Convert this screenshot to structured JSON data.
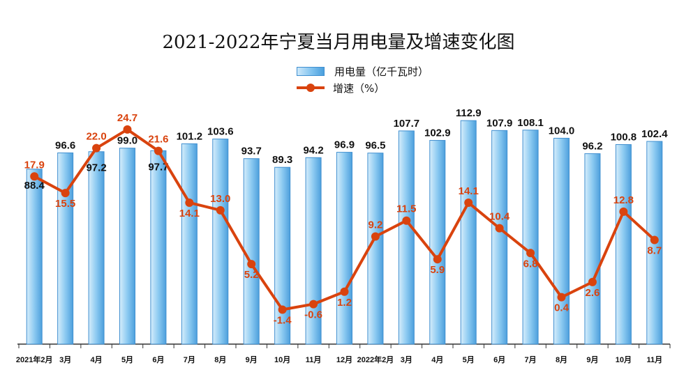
{
  "chart_data": {
    "type": "bar",
    "title": "2021-2022年宁夏当月用电量及增速变化图",
    "categories": [
      "2021年2月",
      "3月",
      "4月",
      "5月",
      "6月",
      "7月",
      "8月",
      "9月",
      "10月",
      "11月",
      "12月",
      "2022年2月",
      "3月",
      "4月",
      "5月",
      "6月",
      "7月",
      "8月",
      "9月",
      "10月",
      "11月"
    ],
    "series": [
      {
        "name": "用电量（亿千瓦时）",
        "type": "bar",
        "values": [
          88.4,
          96.6,
          97.2,
          99.0,
          97.7,
          101.2,
          103.6,
          93.7,
          89.3,
          94.2,
          96.9,
          96.5,
          107.7,
          102.9,
          112.9,
          107.9,
          108.1,
          104.0,
          96.2,
          100.8,
          102.4
        ],
        "labels": [
          "88.4",
          "96.6",
          "97.2",
          "99.0",
          "97.7",
          "101.2",
          "103.6",
          "93.7",
          "89.3",
          "94.2",
          "96.9",
          "96.5",
          "107.7",
          "102.9",
          "112.9",
          "107.9",
          "108.1",
          "104.0",
          "96.2",
          "100.8",
          "102.4"
        ]
      },
      {
        "name": "增速（%）",
        "type": "line",
        "values": [
          17.9,
          15.5,
          22.0,
          24.7,
          21.6,
          14.1,
          13.0,
          5.2,
          -1.4,
          -0.6,
          1.2,
          9.2,
          11.5,
          5.9,
          14.1,
          10.4,
          6.8,
          0.4,
          2.6,
          12.8,
          8.7
        ],
        "labels": [
          "17.9",
          "15.5",
          "22.0",
          "24.7",
          "21.6",
          "14.1",
          "13.0",
          "5.2",
          "-1.4",
          "-0.6",
          "1.2",
          "9.2",
          "11.5",
          "5.9",
          "14.1",
          "10.4",
          "6.8",
          "0.4",
          "2.6",
          "12.8",
          "8.7"
        ]
      }
    ],
    "bar_ylim": [
      0,
      114
    ],
    "line_ylim": [
      -7,
      25.5
    ],
    "grid": false,
    "legend": "top-center",
    "colors": {
      "bar": "#7fc2ef",
      "bar_edge": "#3f8fd0",
      "line": "#d9430e",
      "bar_label": "#111111",
      "line_label": "#d9430e"
    }
  }
}
